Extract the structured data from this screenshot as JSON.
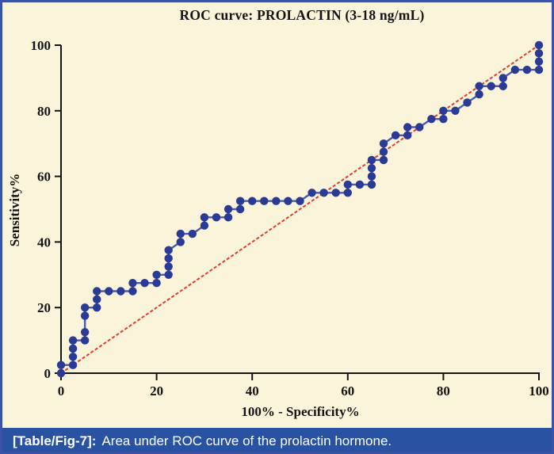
{
  "figure": {
    "caption_label": "[Table/Fig-7]:",
    "caption_text": "Area under ROC curve of the prolactin hormone.",
    "colors": {
      "background": "#FAF4DA",
      "frame_border": "#3A53A6",
      "caption_bar": "#2A52A2",
      "caption_text": "#FFFFFF",
      "axis": "#141414",
      "curve_line": "#4C5AAD",
      "marker": "#2B3A94",
      "reference_line": "#E8372C"
    }
  },
  "chart_data": {
    "type": "line",
    "title": "ROC curve: PROLACTIN (3-18 ng/mL)",
    "xlabel": "100% - Specificity%",
    "ylabel": "Sensitivity%",
    "xlim": [
      0,
      100
    ],
    "ylim": [
      0,
      100
    ],
    "x_ticks": [
      0,
      20,
      40,
      60,
      80,
      100
    ],
    "y_ticks": [
      0,
      20,
      40,
      60,
      80,
      100
    ],
    "grid": false,
    "legend_position": "none",
    "series": [
      {
        "name": "ROC curve (prolactin 3-18 ng/mL)",
        "role": "roc",
        "marker": "circle",
        "points": [
          [
            0,
            0
          ],
          [
            0,
            2.5
          ],
          [
            2.5,
            2.5
          ],
          [
            2.5,
            5
          ],
          [
            2.5,
            7.5
          ],
          [
            2.5,
            10
          ],
          [
            5,
            10
          ],
          [
            5,
            12.5
          ],
          [
            5,
            17.5
          ],
          [
            5,
            20
          ],
          [
            7.5,
            20
          ],
          [
            7.5,
            22.5
          ],
          [
            7.5,
            25
          ],
          [
            10,
            25
          ],
          [
            12.5,
            25
          ],
          [
            15,
            25
          ],
          [
            15,
            27.5
          ],
          [
            17.5,
            27.5
          ],
          [
            20,
            27.5
          ],
          [
            20,
            30
          ],
          [
            22.5,
            30
          ],
          [
            22.5,
            32.5
          ],
          [
            22.5,
            35
          ],
          [
            22.5,
            37.5
          ],
          [
            25,
            40
          ],
          [
            25,
            42.5
          ],
          [
            27.5,
            42.5
          ],
          [
            30,
            45
          ],
          [
            30,
            47.5
          ],
          [
            32.5,
            47.5
          ],
          [
            35,
            47.5
          ],
          [
            35,
            50
          ],
          [
            37.5,
            50
          ],
          [
            37.5,
            52.5
          ],
          [
            40,
            52.5
          ],
          [
            42.5,
            52.5
          ],
          [
            45,
            52.5
          ],
          [
            47.5,
            52.5
          ],
          [
            50,
            52.5
          ],
          [
            52.5,
            55
          ],
          [
            55,
            55
          ],
          [
            57.5,
            55
          ],
          [
            60,
            55
          ],
          [
            60,
            57.5
          ],
          [
            62.5,
            57.5
          ],
          [
            65,
            57.5
          ],
          [
            65,
            60
          ],
          [
            65,
            62.5
          ],
          [
            65,
            65
          ],
          [
            67.5,
            65
          ],
          [
            67.5,
            67.5
          ],
          [
            67.5,
            70
          ],
          [
            70,
            72.5
          ],
          [
            72.5,
            72.5
          ],
          [
            72.5,
            75
          ],
          [
            75,
            75
          ],
          [
            77.5,
            77.5
          ],
          [
            80,
            77.5
          ],
          [
            80,
            80
          ],
          [
            82.5,
            80
          ],
          [
            85,
            82.5
          ],
          [
            87.5,
            85
          ],
          [
            87.5,
            87.5
          ],
          [
            90,
            87.5
          ],
          [
            92.5,
            87.5
          ],
          [
            92.5,
            90
          ],
          [
            95,
            92.5
          ],
          [
            97.5,
            92.5
          ],
          [
            100,
            92.5
          ],
          [
            100,
            95
          ],
          [
            100,
            97.5
          ],
          [
            100,
            100
          ]
        ]
      },
      {
        "name": "Reference diagonal",
        "role": "reference",
        "style": "dashed",
        "points": [
          [
            0,
            0
          ],
          [
            100,
            100
          ]
        ]
      }
    ]
  }
}
